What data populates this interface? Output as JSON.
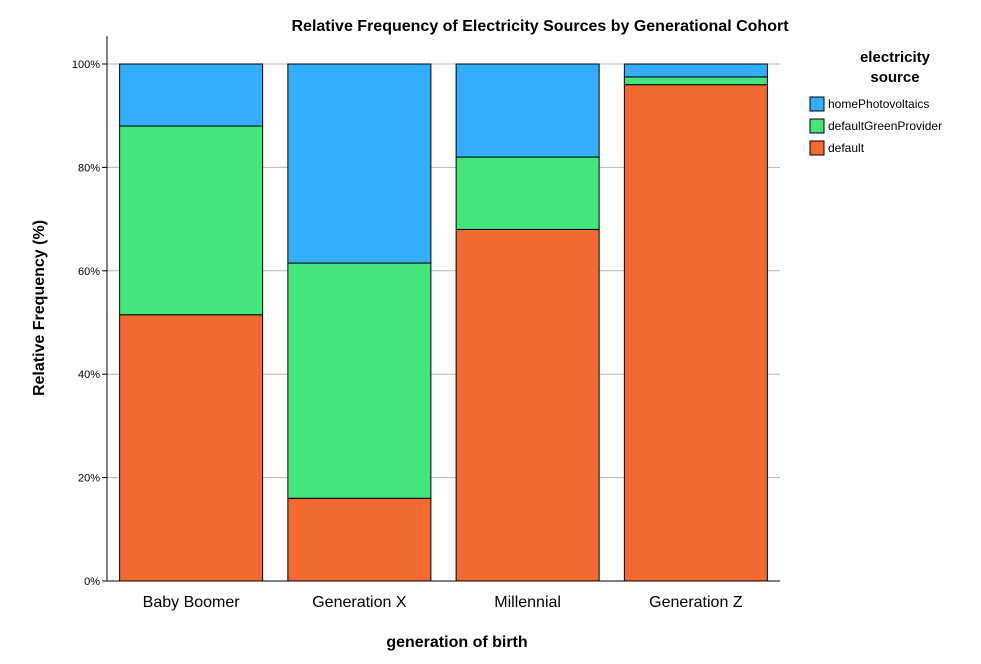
{
  "chart_data": {
    "type": "bar",
    "stacked": true,
    "title": "Relative Frequency of Electricity Sources by Generational Cohort",
    "xlabel": "generation of birth",
    "ylabel": "Relative Frequency (%)",
    "ylim": [
      0,
      100
    ],
    "y_ticks": [
      0,
      20,
      40,
      60,
      80,
      100
    ],
    "y_tick_labels": [
      "0%",
      "20%",
      "40%",
      "60%",
      "80%",
      "100%"
    ],
    "grid": "horizontal",
    "categories": [
      "Baby Boomer",
      "Generation X",
      "Millennial",
      "Generation Z"
    ],
    "series": [
      {
        "name": "default",
        "color": "#f26a2f",
        "values": [
          51.5,
          16.0,
          68.0,
          96.0
        ]
      },
      {
        "name": "defaultGreenProvider",
        "color": "#43e67a",
        "values": [
          36.5,
          45.5,
          14.0,
          1.5
        ]
      },
      {
        "name": "homePhotovoltaics",
        "color": "#33aefc",
        "values": [
          12.0,
          38.5,
          18.0,
          2.5
        ]
      }
    ],
    "legend": {
      "title_lines": [
        "electricity",
        "source"
      ],
      "placement": "right",
      "order": [
        "homePhotovoltaics",
        "defaultGreenProvider",
        "default"
      ]
    }
  }
}
